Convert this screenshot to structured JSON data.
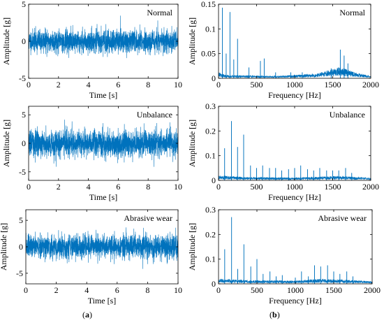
{
  "figure": {
    "panel_labels": [
      {
        "open": "(",
        "letter": "a",
        "close": ")"
      },
      {
        "open": "(",
        "letter": "b",
        "close": ")"
      }
    ]
  },
  "colors": {
    "signal": "#0072BD",
    "axis": "#000000",
    "background": "#ffffff"
  },
  "chart_data": [
    {
      "type": "line",
      "id": "time-normal",
      "title": "Normal",
      "xlabel": "Time [s]",
      "ylabel": "Amplitude [g]",
      "xlim": [
        0,
        10
      ],
      "ylim": [
        -5,
        5
      ],
      "xticks": [
        0,
        2,
        4,
        6,
        8,
        10
      ],
      "yticks": [
        -5,
        0,
        5
      ],
      "grid": false,
      "signal": {
        "kind": "noise",
        "rms": 0.75,
        "peak": 3.7,
        "n": 2200,
        "seed": 11
      },
      "series": [
        {
          "values_summary": {
            "min": -3.2,
            "max": 3.7
          }
        }
      ]
    },
    {
      "type": "line",
      "id": "fft-normal",
      "title": "Normal",
      "xlabel": "Frequency [Hz]",
      "ylabel": "Amplitude [g]",
      "xlim": [
        0,
        2000
      ],
      "ylim": [
        0,
        0.15
      ],
      "xticks": [
        0,
        500,
        1000,
        1500,
        2000
      ],
      "yticks": [
        0,
        0.05,
        0.1,
        0.15
      ],
      "grid": false,
      "signal": {
        "kind": "spectrum",
        "seed": 21,
        "floor": [
          [
            0,
            0.008
          ],
          [
            100,
            0.004
          ],
          [
            800,
            0.003
          ],
          [
            1300,
            0.006
          ],
          [
            1600,
            0.014
          ],
          [
            1800,
            0.007
          ],
          [
            2000,
            0.003
          ]
        ]
      },
      "series": [
        {
          "peaks": [
            {
              "x": 50,
              "y": 0.143
            },
            {
              "x": 100,
              "y": 0.05
            },
            {
              "x": 150,
              "y": 0.134
            },
            {
              "x": 200,
              "y": 0.038
            },
            {
              "x": 250,
              "y": 0.08
            },
            {
              "x": 400,
              "y": 0.022
            },
            {
              "x": 550,
              "y": 0.035
            },
            {
              "x": 600,
              "y": 0.04
            },
            {
              "x": 750,
              "y": 0.012
            },
            {
              "x": 950,
              "y": 0.012
            },
            {
              "x": 1100,
              "y": 0.012
            },
            {
              "x": 1480,
              "y": 0.02
            },
            {
              "x": 1600,
              "y": 0.058
            },
            {
              "x": 1650,
              "y": 0.046
            },
            {
              "x": 1700,
              "y": 0.03
            }
          ]
        }
      ]
    },
    {
      "type": "line",
      "id": "time-unbalance",
      "title": "Unbalance",
      "xlabel": "Time [s]",
      "ylabel": "Amplitude [g]",
      "xlim": [
        0,
        10
      ],
      "ylim": [
        -6.5,
        6.5
      ],
      "xticks": [
        0,
        2,
        4,
        6,
        8,
        10
      ],
      "yticks": [
        -5,
        0,
        5
      ],
      "grid": false,
      "signal": {
        "kind": "noise",
        "rms": 1.15,
        "peak": 5.3,
        "n": 2200,
        "seed": 33
      },
      "series": [
        {
          "values_summary": {
            "min": -5.3,
            "max": 5.2
          }
        }
      ]
    },
    {
      "type": "line",
      "id": "fft-unbalance",
      "title": "Unbalance",
      "xlabel": "Frequency [Hz]",
      "ylabel": "Amplitude [g]",
      "xlim": [
        0,
        2000
      ],
      "ylim": [
        0,
        0.3
      ],
      "xticks": [
        0,
        500,
        1000,
        1500,
        2000
      ],
      "yticks": [
        0,
        0.1,
        0.2,
        0.3
      ],
      "grid": false,
      "signal": {
        "kind": "spectrum",
        "seed": 43,
        "floor": [
          [
            0,
            0.012
          ],
          [
            400,
            0.008
          ],
          [
            1000,
            0.007
          ],
          [
            1600,
            0.011
          ],
          [
            2000,
            0.006
          ]
        ]
      },
      "series": [
        {
          "peaks": [
            {
              "x": 80,
              "y": 0.13
            },
            {
              "x": 170,
              "y": 0.24
            },
            {
              "x": 250,
              "y": 0.135
            },
            {
              "x": 330,
              "y": 0.185
            },
            {
              "x": 420,
              "y": 0.06
            },
            {
              "x": 500,
              "y": 0.05
            },
            {
              "x": 580,
              "y": 0.06
            },
            {
              "x": 670,
              "y": 0.05
            },
            {
              "x": 750,
              "y": 0.05
            },
            {
              "x": 830,
              "y": 0.04
            },
            {
              "x": 920,
              "y": 0.045
            },
            {
              "x": 1000,
              "y": 0.05
            },
            {
              "x": 1080,
              "y": 0.06
            },
            {
              "x": 1170,
              "y": 0.045
            },
            {
              "x": 1250,
              "y": 0.04
            },
            {
              "x": 1330,
              "y": 0.05
            },
            {
              "x": 1420,
              "y": 0.04
            },
            {
              "x": 1500,
              "y": 0.04
            },
            {
              "x": 1580,
              "y": 0.04
            },
            {
              "x": 1670,
              "y": 0.05
            },
            {
              "x": 1750,
              "y": 0.03
            }
          ]
        }
      ]
    },
    {
      "type": "line",
      "id": "time-abrasive",
      "title": "Abrasive wear",
      "xlabel": "Time [s]",
      "ylabel": "Amplitude [g]",
      "xlim": [
        0,
        10
      ],
      "ylim": [
        -7,
        7
      ],
      "xticks": [
        0,
        2,
        4,
        6,
        8,
        10
      ],
      "yticks": [
        -5,
        0,
        5
      ],
      "grid": false,
      "signal": {
        "kind": "noise",
        "rms": 1.1,
        "peak": 6.2,
        "n": 2200,
        "seed": 55
      },
      "series": [
        {
          "values_summary": {
            "min": -6.2,
            "max": 6.0
          }
        }
      ]
    },
    {
      "type": "line",
      "id": "fft-abrasive",
      "title": "Abrasive wear",
      "xlabel": "Frequency [Hz]",
      "ylabel": "Amplitude [g]",
      "xlim": [
        0,
        2000
      ],
      "ylim": [
        0,
        0.3
      ],
      "xticks": [
        0,
        500,
        1000,
        1500,
        2000
      ],
      "yticks": [
        0,
        0.1,
        0.2,
        0.3
      ],
      "grid": false,
      "signal": {
        "kind": "spectrum",
        "seed": 65,
        "floor": [
          [
            0,
            0.012
          ],
          [
            400,
            0.009
          ],
          [
            1000,
            0.008
          ],
          [
            1300,
            0.012
          ],
          [
            1700,
            0.01
          ],
          [
            2000,
            0.006
          ]
        ]
      },
      "series": [
        {
          "peaks": [
            {
              "x": 80,
              "y": 0.14
            },
            {
              "x": 170,
              "y": 0.27
            },
            {
              "x": 250,
              "y": 0.06
            },
            {
              "x": 330,
              "y": 0.16
            },
            {
              "x": 420,
              "y": 0.07
            },
            {
              "x": 500,
              "y": 0.1
            },
            {
              "x": 580,
              "y": 0.04
            },
            {
              "x": 670,
              "y": 0.05
            },
            {
              "x": 750,
              "y": 0.03
            },
            {
              "x": 830,
              "y": 0.035
            },
            {
              "x": 1000,
              "y": 0.025
            },
            {
              "x": 1080,
              "y": 0.05
            },
            {
              "x": 1170,
              "y": 0.03
            },
            {
              "x": 1250,
              "y": 0.075
            },
            {
              "x": 1330,
              "y": 0.07
            },
            {
              "x": 1420,
              "y": 0.075
            },
            {
              "x": 1500,
              "y": 0.05
            },
            {
              "x": 1580,
              "y": 0.04
            },
            {
              "x": 1670,
              "y": 0.05
            },
            {
              "x": 1750,
              "y": 0.03
            }
          ]
        }
      ]
    }
  ]
}
